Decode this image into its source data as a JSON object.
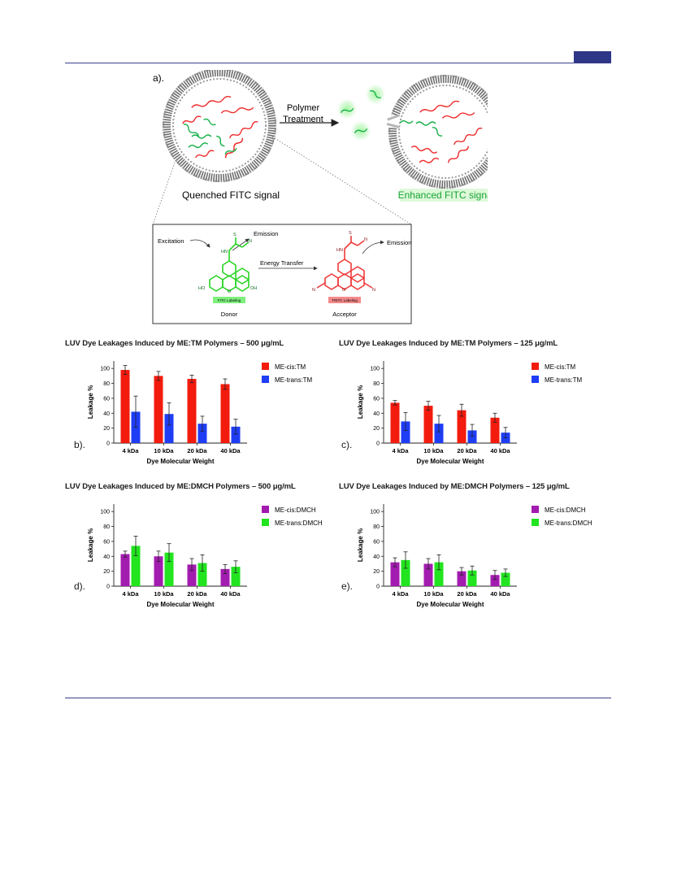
{
  "colors": {
    "rule": "#3b3f8c",
    "header_tag": "#2e3687",
    "red": "#f21b0e",
    "blue": "#1f3df5",
    "purple": "#a21caf",
    "green": "#22e41f"
  },
  "figure_a": {
    "label": "a).",
    "arrow_label_line1": "Polymer",
    "arrow_label_line2": "Treatment",
    "left_caption": "Quenched FITC signal",
    "right_caption": "Enhanced FITC signal",
    "inset": {
      "excitation": "Excitation",
      "emission_left": "Emission",
      "energy_transfer": "Energy Transfer",
      "emission_right": "Emission",
      "fitc_tag": "FITC Labeling",
      "tritc_tag": "TRITC Labeling",
      "donor": "Donor",
      "acceptor": "Acceptor",
      "ho": "HO",
      "oh": "OH",
      "n": "N",
      "hn": "HN",
      "s": "S",
      "o": "O"
    }
  },
  "panels": {
    "b": {
      "label": "b).",
      "title": "LUV Dye Leakages Induced by ME:TM Polymers – 500 μg/mL"
    },
    "c": {
      "label": "c).",
      "title": "LUV Dye Leakages Induced by ME:TM Polymers – 125 μg/mL"
    },
    "d": {
      "label": "d).",
      "title": "LUV Dye Leakages Induced by ME:DMCH Polymers – 500 μg/mL"
    },
    "e": {
      "label": "e).",
      "title": "LUV Dye Leakages Induced by ME:DMCH Polymers – 125 μg/mL"
    }
  },
  "chart_data": [
    {
      "id": "b",
      "type": "bar",
      "title": "LUV Dye Leakages Induced by ME:TM Polymers – 500 μg/mL",
      "xlabel": "Dye Molecular Weight",
      "ylabel": "Leakage %",
      "categories": [
        "4 kDa",
        "10 kDa",
        "20 kDa",
        "40 kDa"
      ],
      "yticks": [
        "0",
        "20",
        "40",
        "60",
        "80",
        "100"
      ],
      "ylim": [
        0,
        110
      ],
      "legend_position": "top-right",
      "series": [
        {
          "name": "ME-cis:TM",
          "color": "#f21b0e",
          "values": [
            98,
            90,
            86,
            79
          ],
          "errors": [
            6,
            6,
            5,
            7
          ]
        },
        {
          "name": "ME-trans:TM",
          "color": "#1f3df5",
          "values": [
            42,
            39,
            26,
            22
          ],
          "errors": [
            21,
            15,
            10,
            10
          ]
        }
      ]
    },
    {
      "id": "c",
      "type": "bar",
      "title": "LUV Dye Leakages Induced by ME:TM Polymers – 125 μg/mL",
      "xlabel": "Dye Molecular Weight",
      "ylabel": "Leakage %",
      "categories": [
        "4 kDa",
        "10 kDa",
        "20 kDa",
        "40 kDa"
      ],
      "yticks": [
        "0",
        "20",
        "40",
        "60",
        "80",
        "100"
      ],
      "ylim": [
        0,
        110
      ],
      "legend_position": "top-right",
      "series": [
        {
          "name": "ME-cis:TM",
          "color": "#f21b0e",
          "values": [
            54,
            50,
            44,
            34
          ],
          "errors": [
            3,
            6,
            8,
            6
          ]
        },
        {
          "name": "ME-trans:TM",
          "color": "#1f3df5",
          "values": [
            29,
            26,
            17,
            14
          ],
          "errors": [
            12,
            11,
            8,
            7
          ]
        }
      ]
    },
    {
      "id": "d",
      "type": "bar",
      "title": "LUV Dye Leakages Induced by ME:DMCH Polymers – 500 μg/mL",
      "xlabel": "Dye Molecular Weight",
      "ylabel": "Leakage %",
      "categories": [
        "4 kDa",
        "10 kDa",
        "20 kDa",
        "40 kDa"
      ],
      "yticks": [
        "0",
        "20",
        "40",
        "60",
        "80",
        "100"
      ],
      "ylim": [
        0,
        110
      ],
      "legend_position": "top-right",
      "series": [
        {
          "name": "ME-cis:DMCH",
          "color": "#a21caf",
          "values": [
            43,
            40,
            29,
            23
          ],
          "errors": [
            4,
            7,
            8,
            6
          ]
        },
        {
          "name": "ME-trans:DMCH",
          "color": "#22e41f",
          "values": [
            54,
            45,
            31,
            26
          ],
          "errors": [
            13,
            12,
            11,
            8
          ]
        }
      ]
    },
    {
      "id": "e",
      "type": "bar",
      "title": "LUV Dye Leakages Induced by ME:DMCH Polymers – 125 μg/mL",
      "xlabel": "Dye Molecular Weight",
      "ylabel": "Leakage %",
      "categories": [
        "4 kDa",
        "10 kDa",
        "20 kDa",
        "40 kDa"
      ],
      "yticks": [
        "0",
        "20",
        "40",
        "60",
        "80",
        "100"
      ],
      "ylim": [
        0,
        110
      ],
      "legend_position": "top-right",
      "series": [
        {
          "name": "ME-cis:DMCH",
          "color": "#a21caf",
          "values": [
            32,
            30,
            20,
            15
          ],
          "errors": [
            6,
            7,
            5,
            6
          ]
        },
        {
          "name": "ME-trans:DMCH",
          "color": "#22e41f",
          "values": [
            35,
            32,
            21,
            18
          ],
          "errors": [
            11,
            10,
            6,
            5
          ]
        }
      ]
    }
  ]
}
